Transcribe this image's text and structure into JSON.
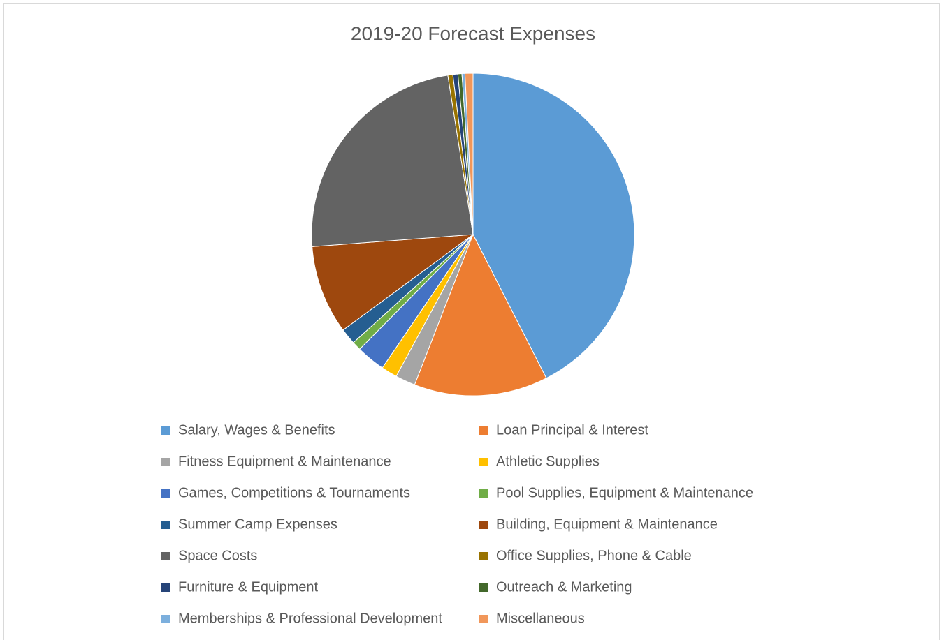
{
  "chart_data": {
    "type": "pie",
    "title": "2019-20 Forecast Expenses",
    "categories": [
      "Salary, Wages & Benefits",
      "Loan Principal & Interest",
      "Fitness Equipment & Maintenance",
      "Athletic Supplies",
      "Games, Competitions & Tournaments",
      "Pool Supplies, Equipment & Maintenance",
      "Summer Camp Expenses",
      "Building, Equipment & Maintenance",
      "Space Costs",
      "Office Supplies, Phone & Cable",
      "Furniture & Equipment",
      "Outreach & Marketing",
      "Memberships & Professional Development",
      "Miscellaneous"
    ],
    "values": [
      42.5,
      13.4,
      2,
      1.6,
      2.9,
      0.9,
      1.6,
      8.9,
      23.7,
      0.5,
      0.5,
      0.4,
      0.3,
      0.8
    ],
    "colors": [
      "#5b9bd5",
      "#ed7d31",
      "#a5a5a5",
      "#ffc000",
      "#4472c4",
      "#70ad47",
      "#255e91",
      "#9e480e",
      "#636363",
      "#997300",
      "#264478",
      "#43682b",
      "#7cafdd",
      "#f1975a"
    ],
    "legend": "bottom"
  }
}
